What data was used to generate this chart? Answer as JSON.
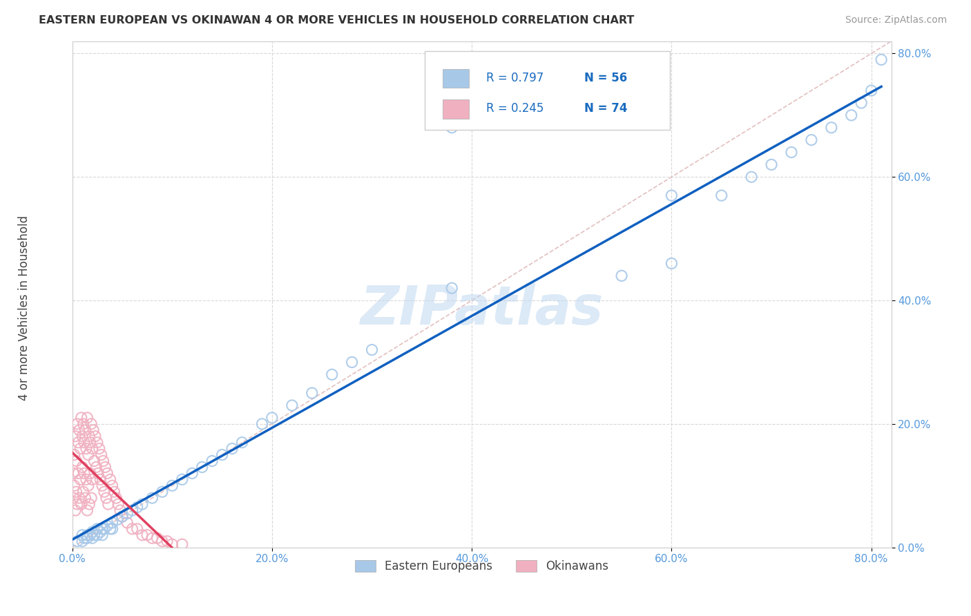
{
  "title": "EASTERN EUROPEAN VS OKINAWAN 4 OR MORE VEHICLES IN HOUSEHOLD CORRELATION CHART",
  "source_text": "Source: ZipAtlas.com",
  "ylabel": "4 or more Vehicles in Household",
  "legend_r1": "R = 0.797",
  "legend_n1": "N = 56",
  "legend_r2": "R = 0.245",
  "legend_n2": "N = 74",
  "legend_label1": "Eastern Europeans",
  "legend_label2": "Okinawans",
  "color_eastern": "#a8c8e8",
  "color_okinawan": "#f0b0c0",
  "regression_color_eastern": "#1060c0",
  "regression_color_okinawan": "#e04060",
  "diagonal_color": "#e0b8b8",
  "background_color": "#ffffff",
  "grid_color": "#d8d8d8",
  "tick_color": "#5599dd",
  "xlim": [
    0.0,
    0.82
  ],
  "ylim": [
    0.0,
    0.82
  ],
  "xtick_vals": [
    0.0,
    0.2,
    0.4,
    0.6,
    0.8
  ],
  "ytick_vals": [
    0.0,
    0.2,
    0.4,
    0.6,
    0.8
  ],
  "xtick_labels": [
    "0.0%",
    "20.0%",
    "40.0%",
    "60.0%",
    "80.0%"
  ],
  "ytick_labels": [
    "0.0%",
    "20.0%",
    "40.0%",
    "60.0%",
    "80.0%"
  ],
  "watermark": "ZIPatlas",
  "east_x": [
    0.005,
    0.01,
    0.01,
    0.012,
    0.015,
    0.015,
    0.018,
    0.02,
    0.02,
    0.022,
    0.025,
    0.025,
    0.028,
    0.03,
    0.03,
    0.032,
    0.035,
    0.038,
    0.04,
    0.04,
    0.045,
    0.05,
    0.055,
    0.06,
    0.065,
    0.07,
    0.08,
    0.09,
    0.1,
    0.11,
    0.12,
    0.13,
    0.14,
    0.15,
    0.16,
    0.17,
    0.19,
    0.2,
    0.22,
    0.24,
    0.26,
    0.28,
    0.3,
    0.38,
    0.55,
    0.6,
    0.65,
    0.68,
    0.7,
    0.72,
    0.74,
    0.76,
    0.78,
    0.79,
    0.8,
    0.81
  ],
  "east_y": [
    0.01,
    0.02,
    0.01,
    0.015,
    0.02,
    0.015,
    0.02,
    0.025,
    0.015,
    0.02,
    0.03,
    0.02,
    0.025,
    0.03,
    0.02,
    0.03,
    0.035,
    0.03,
    0.04,
    0.03,
    0.045,
    0.05,
    0.055,
    0.06,
    0.065,
    0.07,
    0.08,
    0.09,
    0.1,
    0.11,
    0.12,
    0.13,
    0.14,
    0.15,
    0.16,
    0.17,
    0.2,
    0.21,
    0.23,
    0.25,
    0.28,
    0.3,
    0.32,
    0.42,
    0.44,
    0.46,
    0.57,
    0.6,
    0.62,
    0.64,
    0.66,
    0.68,
    0.7,
    0.72,
    0.74,
    0.79
  ],
  "oki_x": [
    0.001,
    0.001,
    0.002,
    0.002,
    0.003,
    0.003,
    0.004,
    0.004,
    0.005,
    0.005,
    0.006,
    0.006,
    0.007,
    0.007,
    0.008,
    0.008,
    0.009,
    0.009,
    0.01,
    0.01,
    0.011,
    0.011,
    0.012,
    0.012,
    0.013,
    0.013,
    0.014,
    0.014,
    0.015,
    0.015,
    0.016,
    0.016,
    0.017,
    0.017,
    0.018,
    0.018,
    0.019,
    0.019,
    0.02,
    0.02,
    0.021,
    0.022,
    0.023,
    0.024,
    0.025,
    0.026,
    0.027,
    0.028,
    0.029,
    0.03,
    0.031,
    0.032,
    0.033,
    0.034,
    0.035,
    0.036,
    0.038,
    0.04,
    0.042,
    0.044,
    0.046,
    0.048,
    0.05,
    0.055,
    0.06,
    0.065,
    0.07,
    0.075,
    0.08,
    0.085,
    0.09,
    0.095,
    0.1,
    0.11
  ],
  "oki_y": [
    0.12,
    0.08,
    0.15,
    0.1,
    0.18,
    0.06,
    0.14,
    0.09,
    0.2,
    0.07,
    0.17,
    0.12,
    0.19,
    0.08,
    0.16,
    0.11,
    0.21,
    0.07,
    0.18,
    0.13,
    0.2,
    0.09,
    0.17,
    0.12,
    0.19,
    0.08,
    0.16,
    0.11,
    0.21,
    0.06,
    0.15,
    0.1,
    0.18,
    0.07,
    0.17,
    0.12,
    0.2,
    0.08,
    0.16,
    0.11,
    0.19,
    0.14,
    0.18,
    0.13,
    0.17,
    0.12,
    0.16,
    0.11,
    0.15,
    0.1,
    0.14,
    0.09,
    0.13,
    0.08,
    0.12,
    0.07,
    0.11,
    0.1,
    0.09,
    0.08,
    0.07,
    0.06,
    0.05,
    0.04,
    0.03,
    0.03,
    0.02,
    0.02,
    0.015,
    0.015,
    0.01,
    0.01,
    0.005,
    0.005
  ]
}
